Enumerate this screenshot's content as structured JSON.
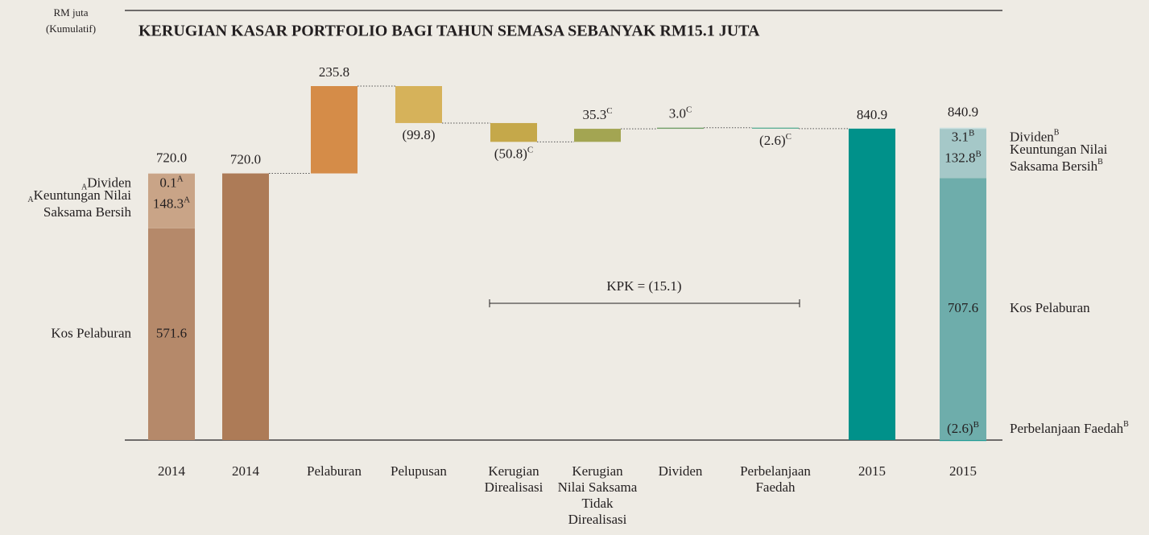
{
  "chart_data": {
    "type": "waterfall",
    "title": "KERUGIAN KASAR PORTFOLIO BAGI TAHUN SEMASA SEBANYAK RM15.1 JUTA",
    "unit_label": [
      "RM juta",
      "(Kumulatif)"
    ],
    "kpk_label": "KPK = (15.1)",
    "opening_breakdown": {
      "category": "2014",
      "total": 720,
      "total_label": "720.0",
      "segments": [
        {
          "name": [
            "Kos Pelaburan"
          ],
          "value": 571.6,
          "color": "#b5896a"
        },
        {
          "name": [
            "Keuntungan Nilai",
            "Saksama Bersih"
          ],
          "value": 148.3,
          "color": "#c9a487",
          "note": "A"
        },
        {
          "name": [
            "Dividen"
          ],
          "value": 0.1,
          "color": "#dcc3ac",
          "note": "A"
        }
      ]
    },
    "steps": [
      {
        "category": [
          "2014"
        ],
        "kind": "total",
        "value": 720,
        "value_label": "720.0",
        "color": "#ad7b57"
      },
      {
        "category": [
          "Pelaburan"
        ],
        "kind": "delta",
        "value": 235.8,
        "color": "#d58c48"
      },
      {
        "category": [
          "Pelupusan"
        ],
        "kind": "delta",
        "value": -99.8,
        "value_label": "(99.8)",
        "color": "#d6b25a"
      },
      {
        "category": [
          "Kerugian",
          "Direalisasi"
        ],
        "kind": "delta",
        "value": -50.8,
        "value_label": "(50.8)",
        "note": "C",
        "color": "#c5a84a"
      },
      {
        "category": [
          "Kerugian",
          "Nilai Saksama",
          "Tidak",
          "Direalisasi"
        ],
        "kind": "delta",
        "value": 35.3,
        "note": "C",
        "color": "#a3a552"
      },
      {
        "category": [
          "Dividen"
        ],
        "kind": "delta",
        "value": 3.0,
        "value_label": "3.0",
        "note": "C",
        "color": "#6f9e66"
      },
      {
        "category": [
          "Perbelanjaan",
          "Faedah"
        ],
        "kind": "delta",
        "value": -2.6,
        "value_label": "(2.6)",
        "note": "C",
        "color": "#4aa88d"
      },
      {
        "category": [
          "2015"
        ],
        "kind": "total",
        "value": 840.9,
        "color": "#00918a"
      }
    ],
    "closing_breakdown": {
      "category": "2015",
      "total": 840.9,
      "segments": [
        {
          "name": [
            "Perbelanjaan Faedah"
          ],
          "value": -2.6,
          "value_label": "(2.6)",
          "color": "#1f9b94",
          "note": "B"
        },
        {
          "name": [
            "Kos Pelaburan"
          ],
          "value": 707.6,
          "color": "#6eadab"
        },
        {
          "name": [
            "Keuntungan Nilai",
            "Saksama Bersih"
          ],
          "value": 132.8,
          "color": "#a5c8c8",
          "note": "B"
        },
        {
          "name": [
            "Dividen"
          ],
          "value": 3.1,
          "color": "#cbe0e0",
          "note": "B"
        }
      ]
    }
  }
}
